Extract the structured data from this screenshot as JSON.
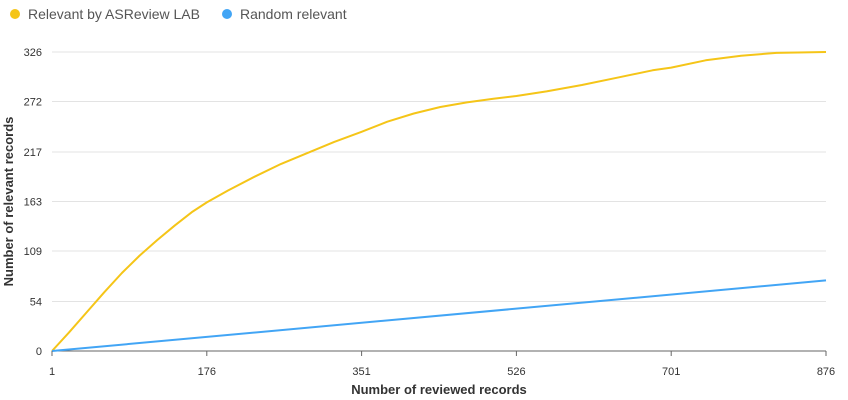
{
  "chart_data": {
    "type": "line",
    "title": "",
    "xlabel": "Number of reviewed records",
    "ylabel": "Number of relevant records",
    "xlim": [
      1,
      876
    ],
    "ylim": [
      0,
      326
    ],
    "xticks": [
      1,
      176,
      351,
      526,
      701,
      876
    ],
    "yticks": [
      0,
      54,
      109,
      163,
      217,
      272,
      326
    ],
    "grid": "horizontal",
    "legend_position": "top-left",
    "series": [
      {
        "name": "Relevant by ASReview LAB",
        "color": "#f5c518",
        "x": [
          1,
          20,
          40,
          60,
          80,
          100,
          120,
          140,
          160,
          176,
          200,
          230,
          260,
          290,
          320,
          351,
          380,
          410,
          440,
          470,
          500,
          526,
          560,
          600,
          640,
          680,
          701,
          740,
          780,
          820,
          876
        ],
        "y": [
          0,
          20,
          42,
          64,
          85,
          104,
          121,
          137,
          152,
          162,
          175,
          190,
          204,
          216,
          228,
          239,
          250,
          259,
          266,
          271,
          275,
          278,
          283,
          290,
          298,
          306,
          309,
          317,
          322,
          325,
          326
        ]
      },
      {
        "name": "Random relevant",
        "color": "#42a5f5",
        "x": [
          1,
          876
        ],
        "y": [
          0,
          77
        ]
      }
    ]
  }
}
